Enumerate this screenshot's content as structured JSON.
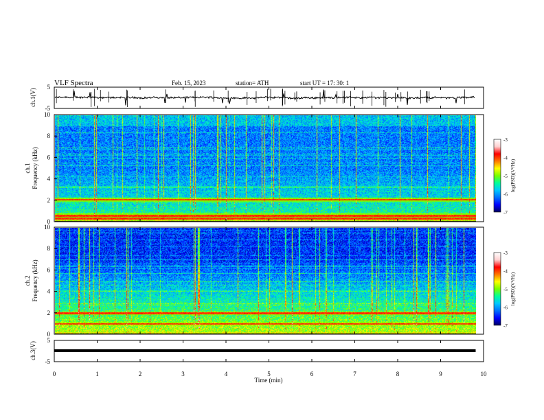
{
  "header": {
    "title": "VLF  Spectra",
    "date": "Feb. 15, 2023",
    "station": "station= ATH",
    "start": "start  UT  =    17: 30: 1"
  },
  "chart_data": {
    "type": "heatmap",
    "xlabel": "Time  (min)",
    "xlim": [
      0,
      10
    ],
    "x_ticks": [
      "0",
      "1",
      "2",
      "3",
      "4",
      "5",
      "6",
      "7",
      "8",
      "9",
      "10"
    ],
    "panels": [
      {
        "id": "ch1-waveform",
        "type": "line",
        "ylabel": "ch.1(V)",
        "ylim": [
          -5,
          5
        ],
        "y_ticks": [
          "5",
          "-5"
        ],
        "baseline_value": 0.1,
        "amplitude": 0.8
      },
      {
        "id": "ch1-spectrogram",
        "type": "heatmap",
        "ylabel": "ch.1\nFrequency (kHz)",
        "ylim": [
          0,
          10
        ],
        "y_ticks": [
          "0",
          "2",
          "4",
          "6",
          "8",
          "10"
        ],
        "time_span_min": [
          0,
          9.8
        ],
        "narrowband_lines_khz": [
          0.3,
          0.6,
          2.1
        ],
        "colorbar": {
          "label": "log(PSD)(V²/Hz)",
          "range": [
            -7,
            -3
          ],
          "ticks": [
            "-3",
            "-4",
            "-5",
            "-6",
            "-7"
          ]
        }
      },
      {
        "id": "ch2-spectrogram",
        "type": "heatmap",
        "ylabel": "ch.2\nFrequency (kHz)",
        "ylim": [
          0,
          10
        ],
        "y_ticks": [
          "0",
          "2",
          "4",
          "6",
          "8",
          "10"
        ],
        "time_span_min": [
          0,
          9.8
        ],
        "narrowband_lines_khz": [
          2.0,
          1.0
        ],
        "colorbar": {
          "label": "log(PSD)(V²/Hz)",
          "range": [
            -7,
            -3
          ],
          "ticks": [
            "-3",
            "-4",
            "-5",
            "-6",
            "-7"
          ]
        }
      },
      {
        "id": "ch3-waveform",
        "type": "line",
        "ylabel": "ch.3(V)",
        "ylim": [
          -5,
          5
        ],
        "y_ticks": [
          "5",
          "-5"
        ],
        "baseline_value": 0.3,
        "amplitude": 0
      }
    ]
  },
  "colors": {
    "colormap": [
      "#000060",
      "#0000ff",
      "#0070ff",
      "#00c8ff",
      "#00ff9a",
      "#7aff00",
      "#ffff00",
      "#ff7800",
      "#ff0000",
      "#ffd0d0",
      "#ffffff"
    ]
  }
}
